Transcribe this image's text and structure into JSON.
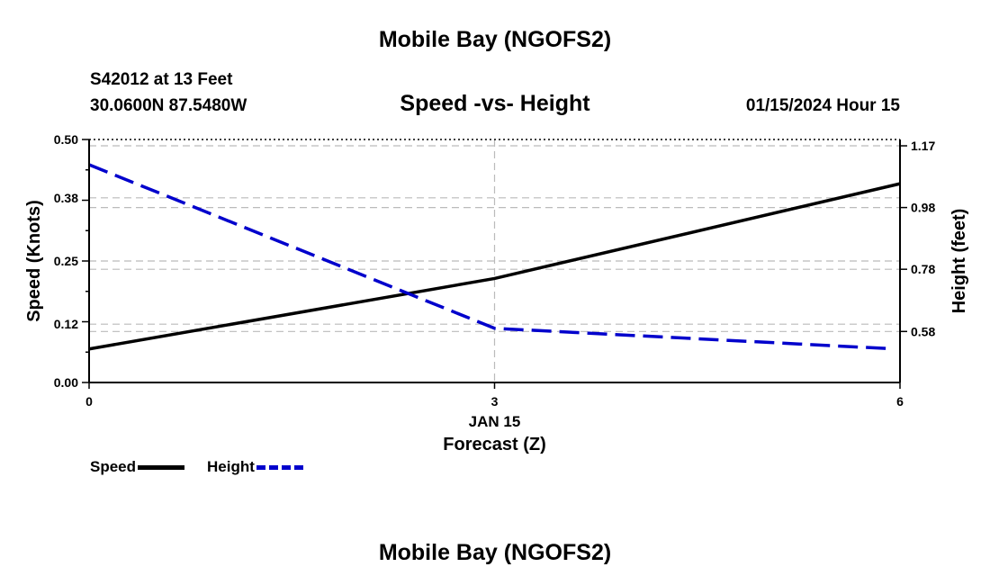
{
  "header": {
    "title": "Mobile Bay (NGOFS2)",
    "station": "S42012 at 13 Feet",
    "coordinates": "30.0600N  87.5480W",
    "datetime": "01/15/2024 Hour 15"
  },
  "footer": {
    "title": "Mobile Bay (NGOFS2)"
  },
  "legend": {
    "speed_label": "Speed",
    "height_label": "Height"
  },
  "colors": {
    "speed": "#000000",
    "height": "#0000cc",
    "grid": "#bbbbbb"
  },
  "chart_data": {
    "type": "line",
    "title": "Speed -vs- Height",
    "xlabel": "Forecast (Z)",
    "x_date_label": "JAN 15",
    "ylabel": "Speed (Knots)",
    "y2label": "Height (feet)",
    "x": [
      0,
      3,
      6
    ],
    "xlim": [
      0,
      6
    ],
    "xticks": [
      "0",
      "3",
      "6"
    ],
    "ylim": [
      0,
      0.5
    ],
    "yticks": [
      "0.00",
      "0.12",
      "0.25",
      "0.38",
      "0.50"
    ],
    "y2ticks": [
      {
        "label": "0.58",
        "speed_equiv": 0.105
      },
      {
        "label": "0.78",
        "speed_equiv": 0.233
      },
      {
        "label": "0.98",
        "speed_equiv": 0.36
      },
      {
        "label": "1.17",
        "speed_equiv": 0.487
      }
    ],
    "grid": true,
    "legend_position": "bottom-left",
    "series": [
      {
        "name": "Speed",
        "axis": "left",
        "style": "solid",
        "values": [
          0.069,
          0.214,
          0.409
        ]
      },
      {
        "name": "Height",
        "axis": "right",
        "style": "dashed",
        "x": [
          0,
          3,
          6
        ],
        "values": [
          1.11,
          0.59,
          0.525
        ]
      }
    ]
  }
}
